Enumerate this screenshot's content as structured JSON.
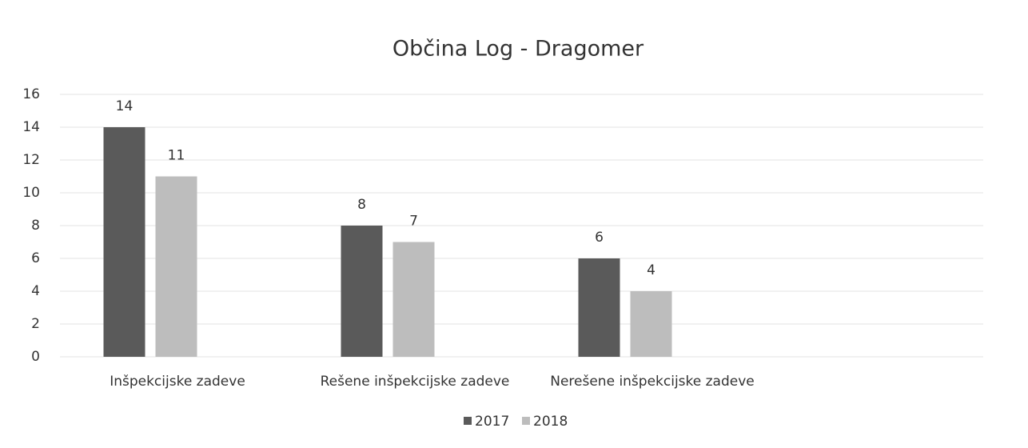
{
  "chart_data": {
    "type": "bar",
    "title": "Občina Log - Dragomer",
    "categories": [
      "Inšpekcijske zadeve",
      "Rešene inšpekcijske zadeve",
      "Nerešene inšpekcijske zadeve"
    ],
    "series": [
      {
        "name": "2017",
        "color": "#5a5a5a",
        "values": [
          14,
          8,
          6
        ]
      },
      {
        "name": "2018",
        "color": "#bdbdbd",
        "values": [
          11,
          7,
          4
        ]
      }
    ],
    "ylim": [
      0,
      16
    ],
    "yticks": [
      0,
      2,
      4,
      6,
      8,
      10,
      12,
      14,
      16
    ],
    "grid": true,
    "legend": "bottom"
  }
}
